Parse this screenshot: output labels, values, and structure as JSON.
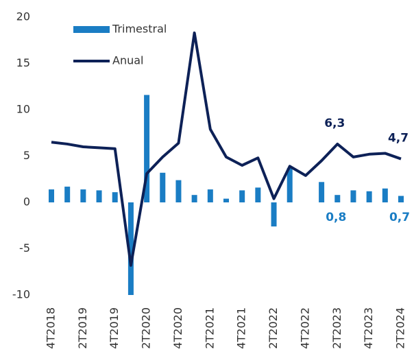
{
  "chart_data": {
    "type": "bar-line",
    "categories": [
      "4T2018",
      null,
      "2T2019",
      null,
      "4T2019",
      null,
      "2T2020",
      null,
      "4T2020",
      null,
      "2T2021",
      null,
      "4T2021",
      null,
      "2T2022",
      null,
      "4T2022",
      null,
      "2T2023",
      null,
      "4T2023",
      null,
      "2T2024"
    ],
    "series": [
      {
        "name": "Trimestral",
        "type": "bar",
        "color": "#1a7dc4",
        "values": [
          1.4,
          1.7,
          1.4,
          1.3,
          1.1,
          -10,
          11.6,
          3.2,
          2.4,
          0.8,
          1.4,
          0.4,
          1.3,
          1.6,
          -2.6,
          3.7,
          0,
          2.2,
          0.8,
          1.3,
          1.2,
          1.5,
          0.7
        ],
        "value_labels": [
          null,
          null,
          null,
          null,
          null,
          null,
          null,
          null,
          null,
          null,
          null,
          null,
          null,
          null,
          null,
          null,
          null,
          null,
          "0,8",
          null,
          null,
          null,
          "0,7"
        ]
      },
      {
        "name": "Anual",
        "type": "line",
        "color": "#0d2157",
        "values": [
          6.5,
          6.3,
          6.0,
          5.9,
          5.8,
          -6.8,
          3.1,
          4.9,
          6.4,
          18.3,
          7.9,
          4.9,
          4.0,
          4.8,
          0.4,
          3.9,
          2.9,
          4.5,
          6.3,
          4.9,
          5.2,
          5.3,
          4.7
        ],
        "value_labels": [
          null,
          null,
          null,
          null,
          null,
          null,
          null,
          null,
          null,
          null,
          null,
          null,
          null,
          null,
          null,
          null,
          null,
          null,
          "6,3",
          null,
          null,
          null,
          "4,7"
        ]
      }
    ],
    "ylim": [
      -10,
      20
    ],
    "yticks": [
      -10,
      -5,
      0,
      5,
      10,
      15,
      20
    ],
    "grid": false,
    "legend": "top-left"
  }
}
